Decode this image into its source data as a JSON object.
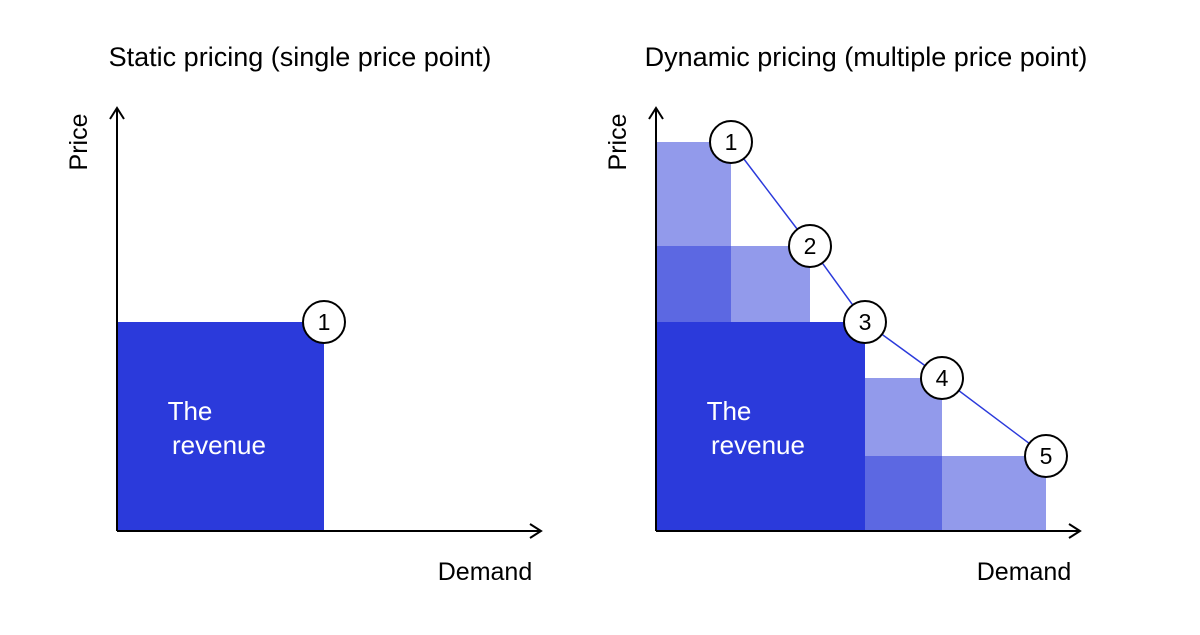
{
  "colors": {
    "primary_blue": "#2b3adb",
    "mid_blue": "#5c68e2",
    "light_blue": "#929aeb",
    "line": "#000000"
  },
  "left_panel": {
    "title": "Static pricing (single price point)",
    "y_label": "Price",
    "x_label": "Demand",
    "revenue_label_line1": "The",
    "revenue_label_line2": "revenue",
    "markers": [
      "1"
    ]
  },
  "right_panel": {
    "title": "Dynamic pricing (multiple price point)",
    "y_label": "Price",
    "x_label": "Demand",
    "revenue_label_line1": "The",
    "revenue_label_line2": "revenue",
    "markers": [
      "1",
      "2",
      "3",
      "4",
      "5"
    ]
  }
}
